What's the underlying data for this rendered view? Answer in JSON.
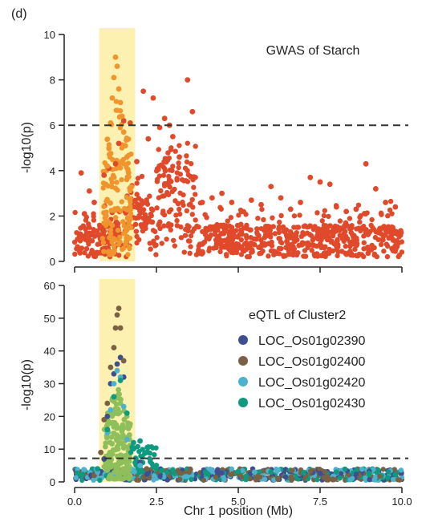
{
  "panel_label": "(d)",
  "xlabel": "Chr 1 position (Mb)",
  "colors": {
    "highlight": "#fdf0a8",
    "gwas_points": "#e04a2b",
    "gwas_highlight_points": "#f0952e",
    "threshold": "#333333",
    "green_cluster": "#8fbf5a"
  },
  "chart_data": [
    {
      "type": "scatter",
      "title": "GWAS of Starch",
      "xlabel": "",
      "ylabel": "-log10(p)",
      "xlim": [
        0,
        10
      ],
      "ylim": [
        0,
        10
      ],
      "yticks": [
        "0",
        "2",
        "4",
        "6",
        "8",
        "10"
      ],
      "threshold": 6,
      "highlight_region": [
        0.75,
        1.85
      ],
      "series": [
        {
          "color": "#e04a2b",
          "x": [
            0.2,
            0.3,
            0.45,
            0.6,
            0.9,
            1.05,
            1.25,
            1.35,
            1.5,
            1.7,
            1.9,
            2.1,
            2.25,
            2.4,
            2.6,
            2.75,
            2.9,
            3.0,
            3.2,
            3.45,
            3.6,
            3.9,
            4.2,
            4.5,
            4.8,
            5.1,
            5.4,
            5.7,
            6.0,
            6.3,
            6.6,
            6.9,
            7.2,
            7.5,
            7.8,
            8.0,
            8.3,
            8.6,
            8.9,
            9.2,
            9.5,
            9.8
          ],
          "values": [
            3.9,
            2.1,
            3.1,
            2.6,
            3.8,
            4.1,
            4.3,
            5.2,
            6.2,
            6.1,
            4.4,
            7.5,
            5.4,
            7.2,
            5.9,
            6.3,
            6.0,
            5.5,
            4.6,
            8.0,
            6.6,
            2.6,
            2.8,
            3.0,
            2.6,
            2.2,
            2.7,
            2.5,
            3.3,
            2.8,
            2.3,
            2.6,
            3.7,
            3.5,
            3.4,
            2.4,
            2.2,
            2.3,
            4.3,
            3.2,
            2.6,
            2.4
          ]
        },
        {
          "color": "#f0952e",
          "x": [
            0.95,
            1.0,
            1.05,
            1.1,
            1.15,
            1.2,
            1.25,
            1.3,
            1.35,
            1.4,
            1.45,
            1.5,
            1.55,
            1.6,
            1.65,
            1.7
          ],
          "values": [
            3.4,
            4.2,
            5.0,
            6.1,
            7.2,
            8.1,
            9.0,
            8.6,
            7.6,
            7.0,
            6.4,
            5.7,
            5.1,
            4.6,
            3.9,
            3.2
          ]
        }
      ]
    },
    {
      "type": "scatter",
      "title": "eQTL of Cluster2",
      "xlabel": "Chr 1 position (Mb)",
      "ylabel": "-log10(p)",
      "xlim": [
        0,
        10
      ],
      "ylim": [
        0,
        60
      ],
      "yticks": [
        "0",
        "10",
        "20",
        "30",
        "40",
        "50",
        "60"
      ],
      "xticks": [
        "0.0",
        "2.5",
        "5.0",
        "7.5",
        "10.0"
      ],
      "threshold": 7.2,
      "highlight_region": [
        0.75,
        1.85
      ],
      "legend_position": "right",
      "series": [
        {
          "name": "LOC_Os01g02390",
          "color": "#3f4e8e",
          "x": [
            0.5,
            0.9,
            1.0,
            1.1,
            1.2,
            1.3,
            1.4,
            1.5,
            2.0,
            3.0,
            4.5,
            6.0,
            7.5,
            9.0
          ],
          "values": [
            2.0,
            7.0,
            20.0,
            30.0,
            33.0,
            36.0,
            38.0,
            32.0,
            6.0,
            3.5,
            2.8,
            3.0,
            2.6,
            3.2
          ]
        },
        {
          "name": "LOC_Os01g02400",
          "color": "#7a6143",
          "x": [
            0.6,
            0.8,
            0.9,
            1.0,
            1.1,
            1.2,
            1.25,
            1.3,
            1.35,
            1.4,
            1.5,
            2.2,
            3.5,
            5.0
          ],
          "values": [
            2.0,
            9.0,
            19.0,
            24.0,
            35.0,
            41.0,
            47.0,
            51.0,
            53.0,
            47.0,
            37.0,
            4.0,
            3.0,
            2.5
          ]
        },
        {
          "name": "LOC_Os01g02420",
          "color": "#4db2ce",
          "x": [
            0.7,
            1.0,
            1.1,
            1.2,
            1.3,
            1.4,
            1.5,
            1.6,
            2.0,
            3.0,
            5.5,
            8.0
          ],
          "values": [
            3.0,
            15.0,
            22.0,
            30.0,
            34.0,
            32.0,
            23.0,
            13.0,
            5.0,
            3.8,
            3.0,
            2.7
          ]
        },
        {
          "name": "LOC_Os01g02430",
          "color": "#0f9a80",
          "x": [
            0.2,
            0.7,
            1.0,
            1.2,
            1.4,
            1.6,
            1.8,
            2.0,
            2.2,
            2.5,
            3.0,
            4.0,
            5.0,
            6.0,
            7.0,
            8.0,
            9.0,
            9.8
          ],
          "values": [
            2.0,
            4.0,
            16.0,
            26.0,
            31.0,
            21.0,
            12.0,
            12.5,
            9.0,
            5.0,
            3.5,
            3.0,
            3.2,
            3.0,
            2.8,
            3.0,
            2.6,
            2.2
          ]
        }
      ]
    }
  ]
}
